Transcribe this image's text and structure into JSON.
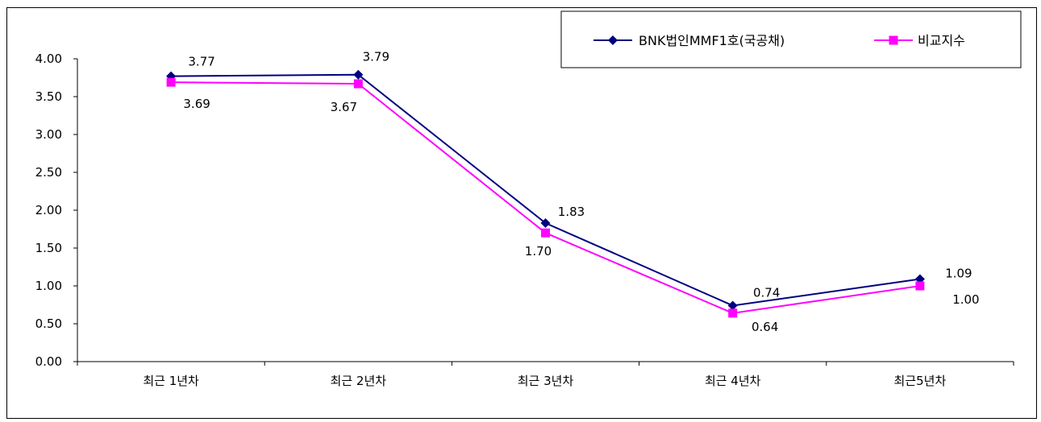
{
  "chart_data": {
    "type": "line",
    "categories": [
      "최근 1년차",
      "최근 2년차",
      "최근 3년차",
      "최근 4년차",
      "최근5년차"
    ],
    "series": [
      {
        "name": "BNK법인MMF1호(국공채)",
        "values": [
          3.77,
          3.79,
          1.83,
          0.74,
          1.09
        ],
        "labels": [
          "3.77",
          "3.79",
          "1.83",
          "0.74",
          "1.09"
        ],
        "color": "#000080",
        "marker": "diamond"
      },
      {
        "name": "비교지수",
        "values": [
          3.69,
          3.67,
          1.7,
          0.64,
          1.0
        ],
        "labels": [
          "3.69",
          "3.67",
          "1.70",
          "0.64",
          "1.00"
        ],
        "color": "#ff00ff",
        "marker": "square"
      }
    ],
    "yticks": [
      "0.00",
      "0.50",
      "1.00",
      "1.50",
      "2.00",
      "2.50",
      "3.00",
      "3.50",
      "4.00"
    ],
    "ylim": [
      0,
      4
    ],
    "grid": false,
    "legend_position": "top-right"
  }
}
